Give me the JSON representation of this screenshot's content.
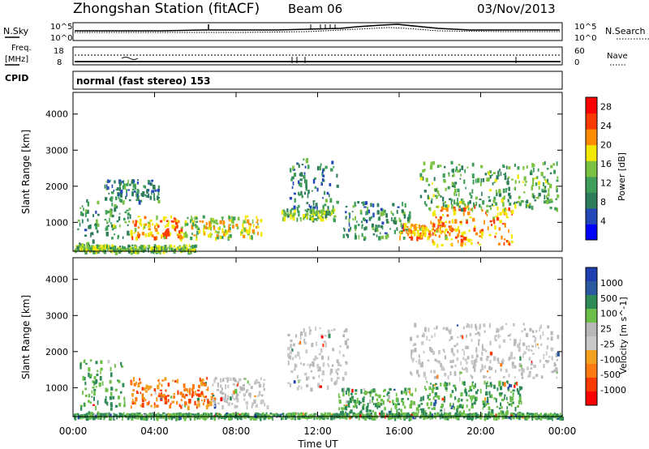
{
  "header": {
    "title": "Zhongshan Station (fitACF)",
    "beam": "Beam 06",
    "date": "03/Nov/2013"
  },
  "aux_panels": {
    "nsky_label": "N.Sky",
    "nsearch_label": "N.Search",
    "noise_ticks_left": [
      "10^5",
      "10^0"
    ],
    "noise_ticks_right": [
      "10^5",
      "10^0"
    ],
    "freq_label_top": "Freq.",
    "freq_label_unit": "[MHz]",
    "freq_ticks": [
      "18",
      "8"
    ],
    "nave_label": "Nave",
    "nave_ticks": [
      "60",
      "0"
    ],
    "cpid_label": "CPID",
    "cpid_value": "normal (fast stereo) 153"
  },
  "colors": {
    "power_scale": [
      "#0000ff",
      "#2448b8",
      "#2e7d5a",
      "#3f9e5a",
      "#7cc242",
      "#f2e800",
      "#ff8c00",
      "#ff3a00",
      "#ff0000"
    ],
    "velocity_scale": [
      "#1f3fb0",
      "#2c5aa0",
      "#2e8b57",
      "#6cc04a",
      "#b8b8b8",
      "#c8c8c8",
      "#f2a020",
      "#ff7a10",
      "#ff3a00",
      "#ff0000"
    ]
  },
  "chart_data": [
    {
      "type": "heatmap",
      "panel": "power",
      "ylabel": "Slant Range [km]",
      "yticks": [
        "1000",
        "2000",
        "3000",
        "4000"
      ],
      "ylim": [
        200,
        4600
      ],
      "xlim": [
        0,
        24
      ],
      "colorbar_label": "Power [dB]",
      "colorbar_ticks": [
        "4",
        "8",
        "12",
        "16",
        "20",
        "24",
        "28"
      ],
      "colorbar_range": [
        0,
        30
      ],
      "echo_regions": [
        {
          "t0": 0.2,
          "t1": 1.2,
          "r0": 350,
          "r1": 1700,
          "level": 10
        },
        {
          "t0": 1.5,
          "t1": 2.8,
          "r0": 600,
          "r1": 1600,
          "level": 12
        },
        {
          "t0": 2.8,
          "t1": 5.3,
          "r0": 600,
          "r1": 1200,
          "level": 22
        },
        {
          "t0": 5.3,
          "t1": 6.2,
          "r0": 600,
          "r1": 1200,
          "level": 16
        },
        {
          "t0": 6.3,
          "t1": 9.2,
          "r0": 600,
          "r1": 1200,
          "level": 18
        },
        {
          "t0": 1.5,
          "t1": 4.2,
          "r0": 1600,
          "r1": 2200,
          "level": 8
        },
        {
          "t0": 10.6,
          "t1": 13.0,
          "r0": 1200,
          "r1": 2800,
          "level": 8
        },
        {
          "t0": 10.2,
          "t1": 12.8,
          "r0": 1100,
          "r1": 1400,
          "level": 14
        },
        {
          "t0": 13.2,
          "t1": 16.5,
          "r0": 600,
          "r1": 1600,
          "level": 10
        },
        {
          "t0": 16.0,
          "t1": 18.0,
          "r0": 600,
          "r1": 1000,
          "level": 22
        },
        {
          "t0": 17.5,
          "t1": 21.5,
          "r0": 400,
          "r1": 1500,
          "level": 22
        },
        {
          "t0": 17.0,
          "t1": 23.8,
          "r0": 1400,
          "r1": 2700,
          "level": 12
        },
        {
          "t0": 0.0,
          "t1": 6.0,
          "r0": 220,
          "r1": 400,
          "level": 14
        }
      ]
    },
    {
      "type": "heatmap",
      "panel": "velocity",
      "ylabel": "Slant Range [km]",
      "yticks": [
        "1000",
        "2000",
        "3000",
        "4000"
      ],
      "ylim": [
        200,
        4600
      ],
      "xlim": [
        0,
        24
      ],
      "colorbar_label": "Velocity [m s^-1]",
      "colorbar_ticks": [
        "1000",
        "500",
        "100",
        "25",
        "-25",
        "-100",
        "-500",
        "-1000"
      ],
      "echo_regions": [
        {
          "t0": 0.3,
          "t1": 2.5,
          "r0": 300,
          "r1": 1800,
          "level": "green"
        },
        {
          "t0": 2.8,
          "t1": 6.8,
          "r0": 500,
          "r1": 1300,
          "level": "orange"
        },
        {
          "t0": 6.8,
          "t1": 9.5,
          "r0": 500,
          "r1": 1300,
          "level": "grey"
        },
        {
          "t0": 10.5,
          "t1": 13.5,
          "r0": 1000,
          "r1": 2700,
          "level": "grey"
        },
        {
          "t0": 13.0,
          "t1": 17.0,
          "r0": 300,
          "r1": 1000,
          "level": "green"
        },
        {
          "t0": 16.5,
          "t1": 23.8,
          "r0": 1300,
          "r1": 2800,
          "level": "grey"
        },
        {
          "t0": 17.0,
          "t1": 22.0,
          "r0": 300,
          "r1": 1200,
          "level": "green"
        },
        {
          "t0": 0.0,
          "t1": 24.0,
          "r0": 200,
          "r1": 320,
          "level": "green"
        }
      ]
    }
  ],
  "time_axis": {
    "ticks": [
      "00:00",
      "04:00",
      "08:00",
      "12:00",
      "16:00",
      "20:00",
      "00:00"
    ],
    "label": "Time UT"
  }
}
